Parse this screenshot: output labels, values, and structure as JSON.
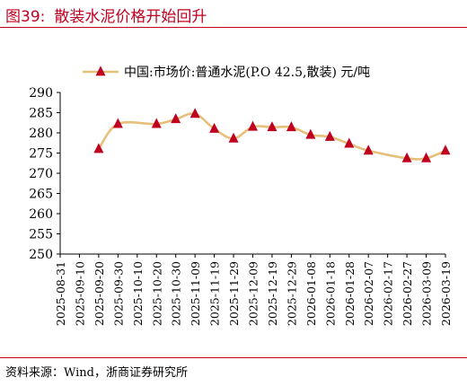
{
  "figure": {
    "number": "图39:",
    "title": "散装水泥价格开始回升",
    "source": "资料来源：Wind，浙商证券研究所"
  },
  "colors": {
    "line": "#e6c07b",
    "marker": "#c0001f",
    "accent": "#c0001f",
    "axis": "#000000"
  },
  "chart_data": {
    "type": "line",
    "title": "",
    "xlabel": "",
    "ylabel": "",
    "ylim": [
      250,
      290
    ],
    "yticks": [
      250,
      255,
      260,
      265,
      270,
      275,
      280,
      285,
      290
    ],
    "xticks": [
      "2025-08-31",
      "2025-09-10",
      "2025-09-20",
      "2025-09-30",
      "2025-10-10",
      "2025-10-20",
      "2025-10-30",
      "2025-11-09",
      "2025-11-19",
      "2025-11-29",
      "2025-12-09",
      "2025-12-19",
      "2025-12-29",
      "2026-01-08",
      "2026-01-18",
      "2026-01-28",
      "2026-02-07",
      "2026-02-17",
      "2026-02-27",
      "2026-03-09",
      "2026-03-19"
    ],
    "grid": false,
    "legend": "top",
    "series": [
      {
        "name": "中国:市场价:普通水泥(P.O 42.5,散装) 元/吨",
        "points": [
          {
            "x": "2025-09-20",
            "y": 276.0
          },
          {
            "x": "2025-09-30",
            "y": 282.2
          },
          {
            "x": "2025-10-20",
            "y": 282.2
          },
          {
            "x": "2025-10-30",
            "y": 283.4
          },
          {
            "x": "2025-11-09",
            "y": 284.7
          },
          {
            "x": "2025-11-19",
            "y": 281.0
          },
          {
            "x": "2025-11-29",
            "y": 278.6
          },
          {
            "x": "2025-12-09",
            "y": 281.5
          },
          {
            "x": "2025-12-19",
            "y": 281.4
          },
          {
            "x": "2025-12-29",
            "y": 281.4
          },
          {
            "x": "2026-01-08",
            "y": 279.5
          },
          {
            "x": "2026-01-18",
            "y": 279.0
          },
          {
            "x": "2026-01-28",
            "y": 277.3
          },
          {
            "x": "2026-02-07",
            "y": 275.6
          },
          {
            "x": "2026-02-27",
            "y": 273.7
          },
          {
            "x": "2026-03-09",
            "y": 273.7
          },
          {
            "x": "2026-03-19",
            "y": 275.6
          }
        ]
      }
    ]
  }
}
